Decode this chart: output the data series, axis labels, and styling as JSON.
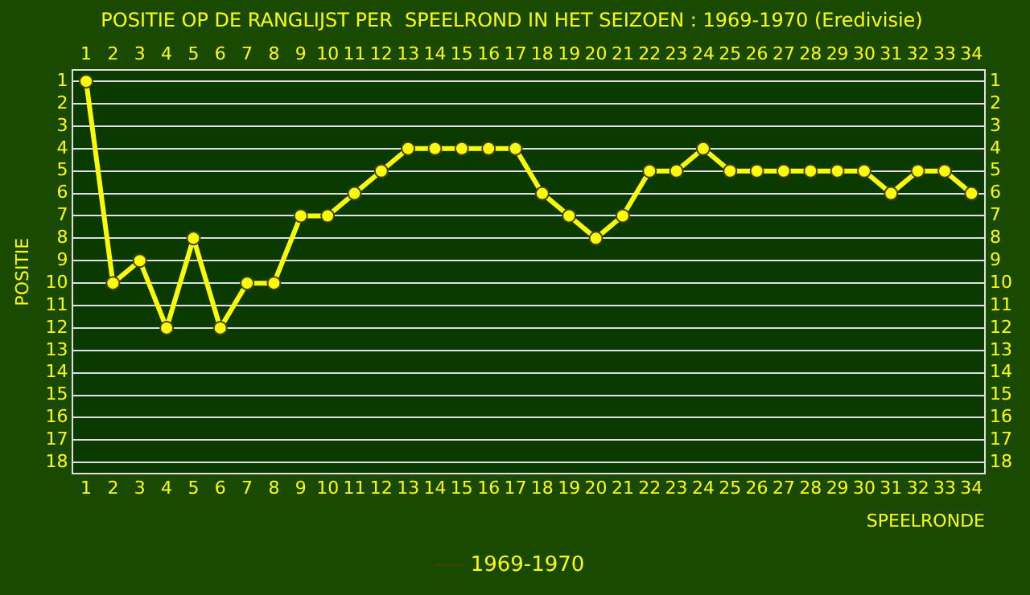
{
  "chart_data": {
    "type": "line",
    "title": "POSITIE OP DE RANGLIJST PER  SPEELROND IN HET SEIZOEN : 1969-1970 (Eredivisie)",
    "xlabel": "SPEELRONDE",
    "ylabel": "POSITIE",
    "x": [
      1,
      2,
      3,
      4,
      5,
      6,
      7,
      8,
      9,
      10,
      11,
      12,
      13,
      14,
      15,
      16,
      17,
      18,
      19,
      20,
      21,
      22,
      23,
      24,
      25,
      26,
      27,
      28,
      29,
      30,
      31,
      32,
      33,
      34
    ],
    "series": [
      {
        "name": "1969-1970",
        "color": "#ffff00",
        "values": [
          1,
          10,
          9,
          12,
          8,
          12,
          10,
          10,
          7,
          7,
          6,
          5,
          4,
          4,
          4,
          4,
          4,
          6,
          7,
          8,
          7,
          5,
          5,
          4,
          5,
          5,
          5,
          5,
          5,
          5,
          6,
          5,
          5,
          6
        ]
      }
    ],
    "xlim": [
      0.5,
      34.5
    ],
    "xticks": [
      1,
      2,
      3,
      4,
      5,
      6,
      7,
      8,
      9,
      10,
      11,
      12,
      13,
      14,
      15,
      16,
      17,
      18,
      19,
      20,
      21,
      22,
      23,
      24,
      25,
      26,
      27,
      28,
      29,
      30,
      31,
      32,
      33,
      34
    ],
    "x2lim": [
      0.5,
      34.5
    ],
    "x2ticks": [
      1,
      2,
      3,
      4,
      5,
      6,
      7,
      8,
      9,
      10,
      11,
      12,
      13,
      14,
      15,
      16,
      17,
      18,
      19,
      20,
      21,
      22,
      23,
      24,
      25,
      26,
      27,
      28,
      29,
      30,
      31,
      32,
      33,
      34
    ],
    "ylim": [
      18.5,
      0.5
    ],
    "yticks": [
      1,
      2,
      3,
      4,
      5,
      6,
      7,
      8,
      9,
      10,
      11,
      12,
      13,
      14,
      15,
      16,
      17,
      18
    ],
    "y2lim": [
      18.5,
      0.5
    ],
    "y2ticks": [
      1,
      2,
      3,
      4,
      5,
      6,
      7,
      8,
      9,
      10,
      11,
      12,
      13,
      14,
      15,
      16,
      17,
      18
    ],
    "grid": "y",
    "legend": "bottom",
    "marker": "circle",
    "line_style": "solid"
  }
}
